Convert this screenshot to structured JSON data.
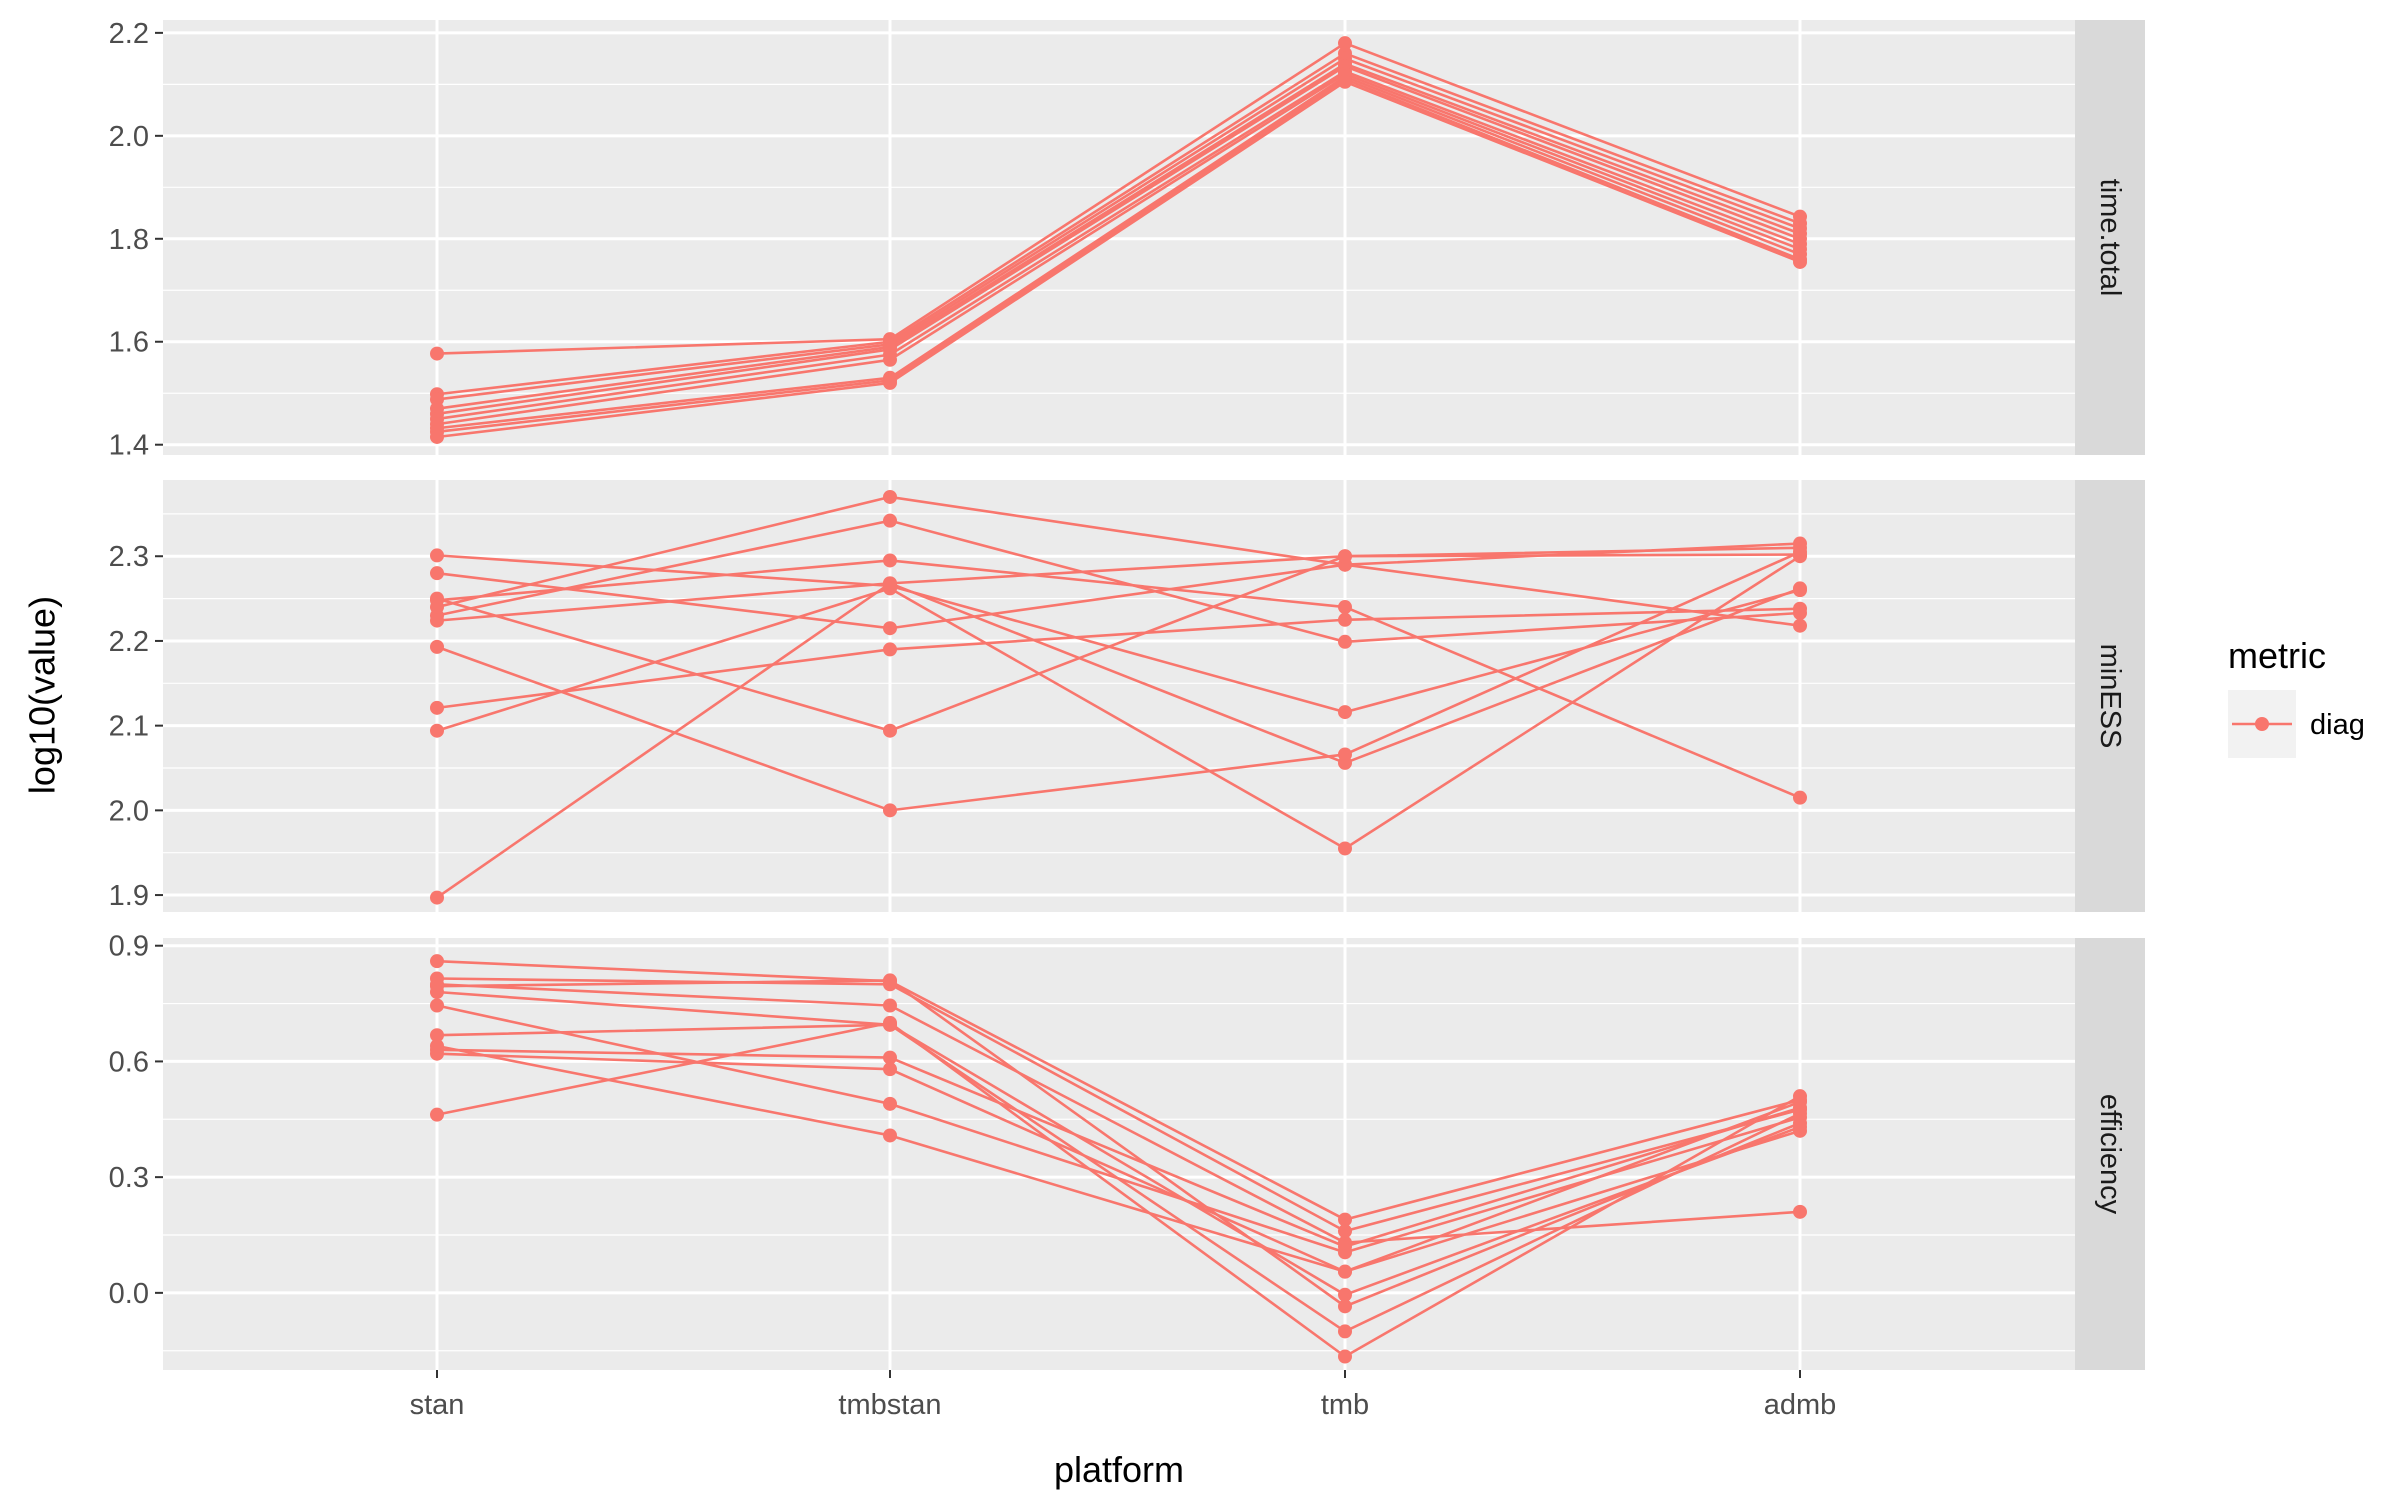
{
  "chart_data": {
    "type": "line",
    "xlabel": "platform",
    "ylabel": "log10(value)",
    "categories": [
      "stan",
      "tmbstan",
      "tmb",
      "admb"
    ],
    "legend": {
      "title": "metric",
      "placement": "right",
      "entries": [
        {
          "label": "diag",
          "color": "#F8766D"
        }
      ]
    },
    "grid": true,
    "facets": [
      {
        "strip": "time.total",
        "ylim": [
          1.38,
          2.225
        ],
        "yticks": [
          "1.4",
          "1.6",
          "1.8",
          "2.0",
          "2.2"
        ],
        "ytick_values": [
          1.4,
          1.6,
          1.8,
          2.0,
          2.2
        ],
        "series": [
          {
            "values": [
              1.577,
              1.605,
              2.18,
              1.843
            ]
          },
          {
            "values": [
              1.498,
              1.6,
              2.16,
              1.83
            ]
          },
          {
            "values": [
              1.488,
              1.595,
              2.15,
              1.82
            ]
          },
          {
            "values": [
              1.47,
              1.59,
              2.14,
              1.81
            ]
          },
          {
            "values": [
              1.46,
              1.585,
              2.135,
              1.8
            ]
          },
          {
            "values": [
              1.45,
              1.575,
              2.125,
              1.79
            ]
          },
          {
            "values": [
              1.44,
              1.565,
              2.12,
              1.78
            ]
          },
          {
            "values": [
              1.432,
              1.53,
              2.115,
              1.77
            ]
          },
          {
            "values": [
              1.425,
              1.525,
              2.11,
              1.76
            ]
          },
          {
            "values": [
              1.415,
              1.52,
              2.105,
              1.755
            ]
          }
        ]
      },
      {
        "strip": "minESS",
        "ylim": [
          1.88,
          2.39
        ],
        "yticks": [
          "1.9",
          "2.0",
          "2.1",
          "2.2",
          "2.3"
        ],
        "ytick_values": [
          1.9,
          2.0,
          2.1,
          2.2,
          2.3
        ],
        "series": [
          {
            "values": [
              2.301,
              2.265,
              2.116,
              2.26
            ]
          },
          {
            "values": [
              2.28,
              2.215,
              2.29,
              2.315
            ]
          },
          {
            "values": [
              2.248,
              2.295,
              2.24,
              2.015
            ]
          },
          {
            "values": [
              2.24,
              2.37,
              2.29,
              2.218
            ]
          },
          {
            "values": [
              2.23,
              2.342,
              2.199,
              2.233
            ]
          },
          {
            "values": [
              2.224,
              2.268,
              2.056,
              2.262
            ]
          },
          {
            "values": [
              2.193,
              2.0,
              2.066,
              2.305
            ]
          },
          {
            "values": [
              2.121,
              2.19,
              2.225,
              2.238
            ]
          },
          {
            "values": [
              2.094,
              2.262,
              1.955,
              2.3
            ]
          },
          {
            "values": [
              1.897,
              2.268,
              2.3,
              2.31
            ]
          },
          {
            "values": [
              2.25,
              2.094,
              2.3,
              2.302
            ]
          }
        ]
      },
      {
        "strip": "efficiency",
        "ylim": [
          -0.2,
          0.92
        ],
        "yticks": [
          "0.0",
          "0.3",
          "0.6",
          "0.9"
        ],
        "ytick_values": [
          0.0,
          0.3,
          0.6,
          0.9
        ],
        "series": [
          {
            "values": [
              0.86,
              0.808,
              0.19,
              0.5
            ]
          },
          {
            "values": [
              0.815,
              0.8,
              0.16,
              0.475
            ]
          },
          {
            "values": [
              0.8,
              0.745,
              0.13,
              0.21
            ]
          },
          {
            "values": [
              0.795,
              0.81,
              -0.035,
              0.44
            ]
          },
          {
            "values": [
              0.78,
              0.695,
              -0.005,
              0.43
            ]
          },
          {
            "values": [
              0.745,
              0.49,
              0.105,
              0.455
            ]
          },
          {
            "values": [
              0.668,
              0.695,
              -0.1,
              0.465
            ]
          },
          {
            "values": [
              0.63,
              0.61,
              0.12,
              0.48
            ]
          },
          {
            "values": [
              0.62,
              0.58,
              0.055,
              0.495
            ]
          },
          {
            "values": [
              0.462,
              0.7,
              -0.165,
              0.51
            ]
          },
          {
            "values": [
              0.64,
              0.408,
              0.055,
              0.42
            ]
          }
        ]
      }
    ]
  }
}
